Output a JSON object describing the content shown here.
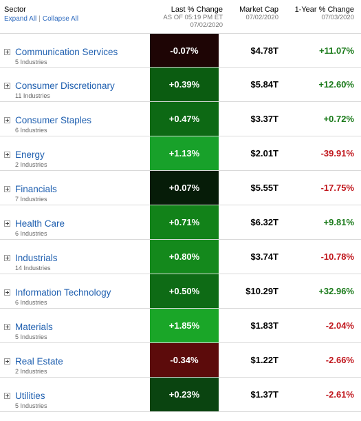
{
  "header": {
    "sector_title": "Sector",
    "expand_all": "Expand All",
    "separator": "|",
    "collapse_all": "Collapse All",
    "last_change_title": "Last % Change",
    "last_change_sub1": "AS OF 05:19 PM ET",
    "last_change_sub2": "07/02/2020",
    "market_cap_title": "Market Cap",
    "market_cap_sub": "07/02/2020",
    "year_change_title": "1-Year % Change",
    "year_change_sub": "07/03/2020"
  },
  "colors": {
    "positive_text": "#1a7a1a",
    "negative_text": "#c0161c",
    "link": "#2060b0"
  },
  "sectors": [
    {
      "name": "Communication Services",
      "industries": "5 Industries",
      "last_change": "-0.07%",
      "market_cap": "$4.78T",
      "year_change": "+11.07%",
      "cell_color": "#1e0505",
      "year_color": "#1a7a1a"
    },
    {
      "name": "Consumer Discretionary",
      "industries": "11 Industries",
      "last_change": "+0.39%",
      "market_cap": "$5.84T",
      "year_change": "+12.60%",
      "cell_color": "#0b5c11",
      "year_color": "#1a7a1a"
    },
    {
      "name": "Consumer Staples",
      "industries": "6 Industries",
      "last_change": "+0.47%",
      "market_cap": "$3.37T",
      "year_change": "+0.72%",
      "cell_color": "#0d6914",
      "year_color": "#1a7a1a"
    },
    {
      "name": "Energy",
      "industries": "2 Industries",
      "last_change": "+1.13%",
      "market_cap": "$2.01T",
      "year_change": "-39.91%",
      "cell_color": "#18a12a",
      "year_color": "#c0161c"
    },
    {
      "name": "Financials",
      "industries": "7 Industries",
      "last_change": "+0.07%",
      "market_cap": "$5.55T",
      "year_change": "-17.75%",
      "cell_color": "#061c08",
      "year_color": "#c0161c"
    },
    {
      "name": "Health Care",
      "industries": "6 Industries",
      "last_change": "+0.71%",
      "market_cap": "$6.32T",
      "year_change": "+9.81%",
      "cell_color": "#128219",
      "year_color": "#1a7a1a"
    },
    {
      "name": "Industrials",
      "industries": "14 Industries",
      "last_change": "+0.80%",
      "market_cap": "$3.74T",
      "year_change": "-10.78%",
      "cell_color": "#14891c",
      "year_color": "#c0161c"
    },
    {
      "name": "Information Technology",
      "industries": "6 Industries",
      "last_change": "+0.50%",
      "market_cap": "$10.29T",
      "year_change": "+32.96%",
      "cell_color": "#0e6b15",
      "year_color": "#1a7a1a"
    },
    {
      "name": "Materials",
      "industries": "5 Industries",
      "last_change": "+1.85%",
      "market_cap": "$1.83T",
      "year_change": "-2.04%",
      "cell_color": "#1aa628",
      "year_color": "#c0161c"
    },
    {
      "name": "Real Estate",
      "industries": "2 Industries",
      "last_change": "-0.34%",
      "market_cap": "$1.22T",
      "year_change": "-2.66%",
      "cell_color": "#5c0b0b",
      "year_color": "#c0161c"
    },
    {
      "name": "Utilities",
      "industries": "5 Industries",
      "last_change": "+0.23%",
      "market_cap": "$1.37T",
      "year_change": "-2.61%",
      "cell_color": "#0a4410",
      "year_color": "#c0161c"
    }
  ]
}
